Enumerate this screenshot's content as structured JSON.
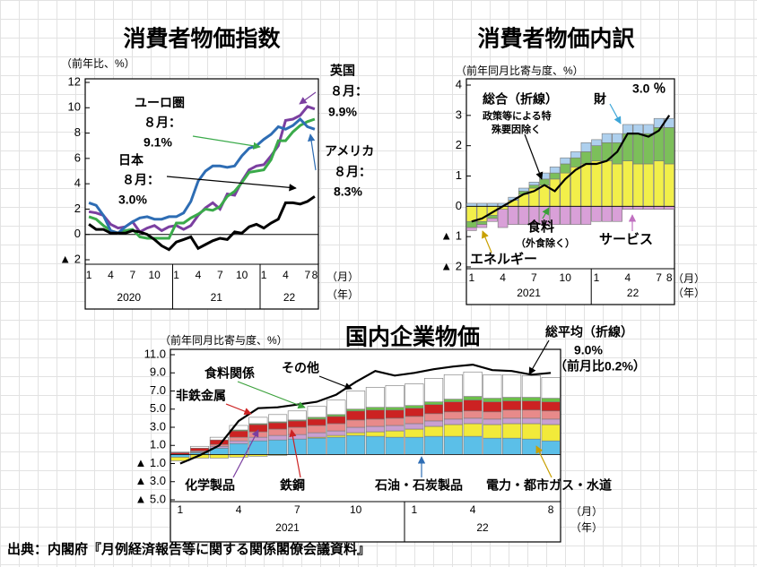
{
  "chart_data": [
    {
      "type": "line",
      "title": "消費者物価指数",
      "y_label": "（前年比、%）",
      "month_note": "８月：",
      "categories": [
        "1",
        null,
        null,
        "4",
        null,
        null,
        "7",
        null,
        null,
        "10",
        null,
        null,
        "1",
        null,
        null,
        "4",
        null,
        null,
        "7",
        null,
        null,
        "10",
        null,
        null,
        "1",
        null,
        null,
        "4",
        null,
        null,
        "7",
        "8"
      ],
      "years": [
        "2020",
        "21",
        "22"
      ],
      "x_unit": "（月）",
      "year_unit": "（年）",
      "ylim": [
        -2,
        12
      ],
      "yticks": [
        {
          "value": -2,
          "label": "▲ 2"
        },
        0,
        2,
        4,
        6,
        8,
        10,
        12
      ],
      "grid": false,
      "series": [
        {
          "name": "英国",
          "color": "#7b3fa0",
          "values": [
            1.8,
            1.7,
            1.5,
            0.8,
            0.5,
            0.6,
            1.0,
            0.2,
            0.5,
            0.7,
            0.3,
            0.6,
            0.7,
            0.4,
            0.7,
            1.5,
            2.1,
            2.5,
            2.0,
            3.2,
            3.1,
            4.2,
            5.1,
            5.4,
            5.5,
            6.2,
            7.0,
            9.0,
            9.1,
            9.4,
            10.1,
            9.9
          ],
          "value_labels": [
            null,
            null,
            null,
            null,
            null,
            null,
            null,
            null,
            null,
            null,
            null,
            null,
            null,
            null,
            null,
            null,
            null,
            null,
            null,
            null,
            null,
            null,
            null,
            null,
            null,
            null,
            null,
            null,
            null,
            null,
            null,
            "9.9%"
          ]
        },
        {
          "name": "ユーロ圏",
          "color": "#3aaa4a",
          "values": [
            1.4,
            1.2,
            0.7,
            0.3,
            0.1,
            0.3,
            0.4,
            -0.2,
            -0.3,
            -0.3,
            -0.3,
            -0.3,
            0.9,
            0.9,
            1.3,
            1.6,
            2.0,
            1.9,
            2.2,
            3.0,
            3.4,
            4.1,
            4.9,
            5.0,
            5.1,
            5.9,
            7.4,
            7.4,
            8.1,
            8.6,
            8.9,
            9.1
          ],
          "value_labels": [
            null,
            null,
            null,
            null,
            null,
            null,
            null,
            null,
            null,
            null,
            null,
            null,
            null,
            null,
            null,
            null,
            null,
            null,
            null,
            null,
            null,
            null,
            null,
            null,
            null,
            null,
            null,
            null,
            null,
            null,
            null,
            "9.1%"
          ]
        },
        {
          "name": "アメリカ",
          "color": "#2e6db4",
          "values": [
            2.5,
            2.3,
            1.5,
            0.3,
            0.1,
            0.6,
            1.0,
            1.3,
            1.4,
            1.2,
            1.2,
            1.4,
            1.4,
            1.7,
            2.6,
            4.2,
            5.0,
            5.4,
            5.4,
            5.3,
            5.4,
            6.2,
            6.8,
            7.0,
            7.5,
            7.9,
            8.5,
            8.3,
            8.6,
            9.1,
            8.5,
            8.3
          ],
          "value_labels": [
            null,
            null,
            null,
            null,
            null,
            null,
            null,
            null,
            null,
            null,
            null,
            null,
            null,
            null,
            null,
            null,
            null,
            null,
            null,
            null,
            null,
            null,
            null,
            null,
            null,
            null,
            null,
            null,
            null,
            null,
            null,
            "8.3%"
          ]
        },
        {
          "name": "日本",
          "color": "#000000",
          "values": [
            0.8,
            0.4,
            0.4,
            0.1,
            0.1,
            0.1,
            0.3,
            0.2,
            0.0,
            -0.4,
            -0.9,
            -1.2,
            -0.6,
            -0.4,
            -0.2,
            -1.1,
            -0.8,
            -0.5,
            -0.3,
            -0.4,
            0.2,
            0.1,
            0.6,
            0.8,
            0.5,
            0.9,
            1.2,
            2.5,
            2.5,
            2.4,
            2.6,
            3.0
          ],
          "value_labels": [
            null,
            null,
            null,
            null,
            null,
            null,
            null,
            null,
            null,
            null,
            null,
            null,
            null,
            null,
            null,
            null,
            null,
            null,
            null,
            null,
            null,
            null,
            null,
            null,
            null,
            null,
            null,
            null,
            null,
            null,
            null,
            "3.0%"
          ]
        }
      ]
    },
    {
      "type": "bar",
      "title": "消費者物価内訳",
      "y_label": "（前年同月比寄与度、%）",
      "categories": [
        "1",
        null,
        null,
        "4",
        null,
        null,
        "7",
        null,
        null,
        "10",
        null,
        null,
        "1",
        null,
        null,
        "4",
        null,
        null,
        "7",
        "8"
      ],
      "years": [
        "2021",
        "22"
      ],
      "x_unit": "（月）",
      "year_unit": "（年）",
      "ylim": [
        -2,
        4
      ],
      "yticks": [
        {
          "value": -2,
          "label": "▲ 2"
        },
        {
          "value": -1,
          "label": "▲ 1"
        },
        0,
        1,
        2,
        3,
        4
      ],
      "grid": false,
      "note": [
        "政策等による特",
        "殊要因除く"
      ],
      "series": [
        {
          "name": "エネルギー",
          "color": "#f2ef4a",
          "values": [
            -0.5,
            -0.5,
            -0.3,
            -0.1,
            0.2,
            0.4,
            0.6,
            0.7,
            0.9,
            1.1,
            1.3,
            1.4,
            1.5,
            1.5,
            1.4,
            1.5,
            1.4,
            1.4,
            1.5,
            1.4
          ]
        },
        {
          "name": "食料",
          "sub": "（外食除く）",
          "color": "#7cbf5a",
          "values": [
            -0.2,
            -0.1,
            -0.1,
            0.0,
            0.0,
            0.1,
            0.1,
            0.2,
            0.2,
            0.3,
            0.3,
            0.4,
            0.5,
            0.6,
            0.7,
            0.9,
            1.0,
            1.0,
            1.1,
            1.2
          ]
        },
        {
          "name": "サービス",
          "color": "#d9a0d8",
          "values": [
            -0.1,
            -0.1,
            -0.1,
            -0.6,
            -0.6,
            -0.6,
            -0.6,
            -0.6,
            -0.6,
            -0.6,
            -0.6,
            -0.6,
            -0.5,
            -0.5,
            -0.5,
            -0.1,
            -0.1,
            -0.1,
            -0.1,
            -0.1
          ]
        },
        {
          "name": "財",
          "color": "#aed0ee",
          "values": [
            0.1,
            0.1,
            0.1,
            0.1,
            0.1,
            0.1,
            0.1,
            0.2,
            0.2,
            0.2,
            0.2,
            0.3,
            0.2,
            0.3,
            0.3,
            0.3,
            0.3,
            0.3,
            0.3,
            0.3
          ]
        }
      ],
      "line": {
        "name": "総合（折線）",
        "color": "#000000",
        "values": [
          -0.5,
          -0.4,
          -0.2,
          0.0,
          0.2,
          0.4,
          0.5,
          0.7,
          0.5,
          0.9,
          1.2,
          1.4,
          1.4,
          1.5,
          1.8,
          2.4,
          2.4,
          2.3,
          2.5,
          3.0
        ],
        "value_labels": [
          null,
          null,
          null,
          null,
          null,
          null,
          null,
          null,
          null,
          null,
          null,
          null,
          null,
          null,
          null,
          null,
          null,
          null,
          null,
          "3.0 ％"
        ]
      }
    },
    {
      "type": "bar",
      "title": "国内企業物価",
      "y_label": "（前年同月比寄与度、%）",
      "categories": [
        "1",
        null,
        null,
        "4",
        null,
        null,
        "7",
        null,
        null,
        "10",
        null,
        null,
        "1",
        null,
        null,
        "4",
        null,
        null,
        null,
        "8"
      ],
      "years": [
        "2021",
        "22"
      ],
      "x_unit": "（月）",
      "year_unit": "（年）",
      "ylim": [
        -5,
        11
      ],
      "yticks": [
        {
          "value": -5,
          "label": "▲ 5.0"
        },
        {
          "value": -3,
          "label": "▲ 3.0"
        },
        {
          "value": -1,
          "label": "▲ 1.0"
        },
        {
          "value": 1,
          "label": "1.0"
        },
        {
          "value": 3,
          "label": "3.0"
        },
        {
          "value": 5,
          "label": "5.0"
        },
        {
          "value": 7,
          "label": "7.0"
        },
        {
          "value": 9,
          "label": "9.0"
        },
        {
          "value": 11,
          "label": "11.0"
        }
      ],
      "grid": false,
      "note": [
        "（前月比0.2%）"
      ],
      "series": [
        {
          "name": "石油・石炭製品",
          "color": "#5bbfe8",
          "values": [
            -0.3,
            0.2,
            0.7,
            1.2,
            1.5,
            1.6,
            1.7,
            1.8,
            1.9,
            2.1,
            2.0,
            1.9,
            1.9,
            2.0,
            2.0,
            2.0,
            1.8,
            1.8,
            1.7,
            1.5
          ]
        },
        {
          "name": "電力・都市ガス・水道",
          "color": "#f2ea3a",
          "values": [
            -0.4,
            -0.4,
            -0.4,
            -0.3,
            -0.2,
            -0.1,
            0.0,
            0.1,
            0.2,
            0.3,
            0.5,
            0.7,
            0.9,
            1.1,
            1.3,
            1.4,
            1.5,
            1.6,
            1.7,
            1.8
          ]
        },
        {
          "name": "化学製品",
          "color": "#c9a0d0",
          "values": [
            0.0,
            0.1,
            0.2,
            0.3,
            0.4,
            0.5,
            0.5,
            0.5,
            0.5,
            0.6,
            0.6,
            0.6,
            0.6,
            0.6,
            0.6,
            0.6,
            0.6,
            0.6,
            0.6,
            0.6
          ]
        },
        {
          "name": "鉄鋼",
          "color": "#e88a8a",
          "values": [
            0.0,
            0.1,
            0.2,
            0.4,
            0.6,
            0.7,
            0.8,
            0.8,
            0.8,
            0.8,
            0.8,
            0.8,
            0.8,
            0.8,
            0.8,
            0.8,
            0.8,
            0.9,
            0.9,
            0.9
          ]
        },
        {
          "name": "非鉄金属",
          "color": "#cc2222",
          "values": [
            0.2,
            0.3,
            0.5,
            0.7,
            0.8,
            0.7,
            0.7,
            0.7,
            0.8,
            1.0,
            1.0,
            0.9,
            0.9,
            1.0,
            1.1,
            1.2,
            1.1,
            1.0,
            1.0,
            1.0
          ]
        },
        {
          "name": "食料関係",
          "color": "#6cbf4a",
          "values": [
            0.0,
            0.0,
            0.0,
            0.1,
            0.1,
            0.1,
            0.1,
            0.2,
            0.2,
            0.2,
            0.3,
            0.3,
            0.3,
            0.3,
            0.3,
            0.4,
            0.4,
            0.4,
            0.4,
            0.4
          ]
        },
        {
          "name": "その他",
          "color": "#ffffff",
          "values": [
            0.1,
            0.2,
            0.3,
            0.5,
            0.7,
            0.8,
            1.0,
            1.2,
            1.6,
            2.0,
            2.2,
            2.4,
            2.4,
            2.6,
            2.7,
            2.7,
            2.6,
            2.5,
            2.4,
            2.3
          ]
        }
      ],
      "line": {
        "name": "総平均（折線）",
        "color": "#000000",
        "values": [
          -1.0,
          -0.1,
          1.0,
          3.7,
          5.1,
          5.2,
          5.5,
          5.8,
          6.6,
          8.0,
          9.2,
          8.7,
          9.0,
          9.4,
          9.7,
          9.9,
          9.3,
          9.2,
          8.8,
          9.0
        ],
        "value_labels": [
          null,
          null,
          null,
          null,
          null,
          null,
          null,
          null,
          null,
          null,
          null,
          null,
          null,
          null,
          null,
          null,
          null,
          null,
          null,
          "9.0%"
        ]
      }
    }
  ],
  "footer": "出典：内閣府『月例経済報告等に関する関係閣僚会議資料』"
}
